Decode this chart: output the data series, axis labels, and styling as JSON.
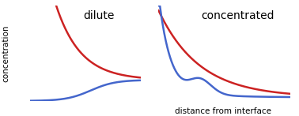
{
  "title_left": "dilute",
  "title_right": "concentrated",
  "xlabel": "distance from interface",
  "ylabel": "concentration",
  "background_color": "#ffffff",
  "red_color": "#cc2222",
  "blue_color": "#4466cc",
  "line_width": 1.8,
  "fig_w": 3.78,
  "fig_h": 1.47
}
